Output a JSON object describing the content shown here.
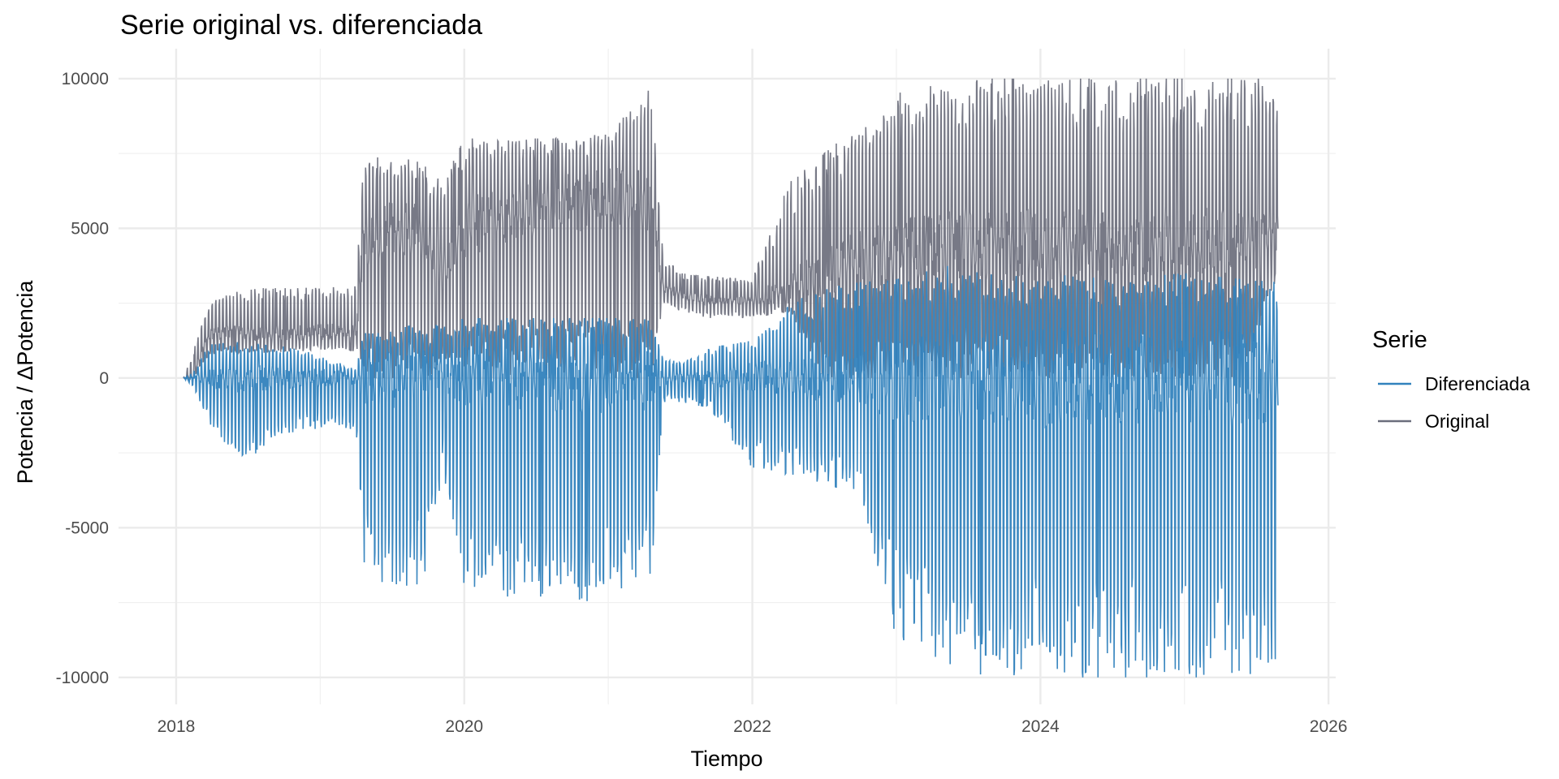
{
  "chart_data": {
    "type": "line",
    "title": "Serie original vs. diferenciada",
    "xlabel": "Tiempo",
    "ylabel": "Potencia / ΔPotencia",
    "xlim": [
      2017.6,
      2026.05
    ],
    "ylim": [
      -10900,
      11000
    ],
    "x_ticks": [
      2018,
      2020,
      2022,
      2024,
      2026
    ],
    "x_tick_labels": [
      "2018",
      "2020",
      "2022",
      "2024",
      "2026"
    ],
    "y_ticks": [
      -10000,
      -5000,
      0,
      5000,
      10000
    ],
    "y_tick_labels": [
      "-10000",
      "-5000",
      "0",
      "5000",
      "10000"
    ],
    "grid": true,
    "legend": {
      "title": "Serie",
      "position": "right",
      "entries": [
        {
          "name": "Diferenciada",
          "color": "#3182bd"
        },
        {
          "name": "Original",
          "color": "#6b6e7c"
        }
      ]
    },
    "series": [
      {
        "name": "Original",
        "color": "#6b6e7c",
        "points": [
          [
            2018.05,
            0,
            0,
            0
          ],
          [
            2018.12,
            0,
            900,
            0
          ],
          [
            2018.22,
            700,
            2500,
            1500
          ],
          [
            2018.45,
            800,
            3000,
            1500
          ],
          [
            2018.85,
            900,
            3000,
            1500
          ],
          [
            2019.25,
            900,
            3100,
            1600
          ],
          [
            2019.3,
            0,
            7500,
            4500
          ],
          [
            2019.45,
            0,
            7300,
            5000
          ],
          [
            2019.65,
            0,
            7300,
            5000
          ],
          [
            2019.75,
            0,
            7000,
            4500
          ],
          [
            2019.85,
            500,
            6500,
            3500
          ],
          [
            2020.0,
            0,
            8000,
            5000
          ],
          [
            2020.3,
            0,
            8000,
            5500
          ],
          [
            2020.7,
            0,
            8000,
            5800
          ],
          [
            2021.0,
            0,
            8200,
            6000
          ],
          [
            2021.3,
            0,
            9800,
            6000
          ],
          [
            2021.38,
            2500,
            4200,
            3000
          ],
          [
            2021.5,
            2200,
            3500,
            2800
          ],
          [
            2021.7,
            2000,
            3400,
            2600
          ],
          [
            2022.0,
            2000,
            3300,
            2600
          ],
          [
            2022.25,
            2200,
            6500,
            3000
          ],
          [
            2022.5,
            0,
            7500,
            3500
          ],
          [
            2022.75,
            0,
            8500,
            4000
          ],
          [
            2023.0,
            0,
            9500,
            4200
          ],
          [
            2023.4,
            0,
            10000,
            4500
          ],
          [
            2023.75,
            0,
            10000,
            4500
          ],
          [
            2024.0,
            0,
            10000,
            4500
          ],
          [
            2024.5,
            0,
            10000,
            4500
          ],
          [
            2025.0,
            0,
            10000,
            4500
          ],
          [
            2025.4,
            0,
            10000,
            4500
          ],
          [
            2025.65,
            3500,
            10000,
            5000
          ]
        ]
      },
      {
        "name": "Diferenciada",
        "color": "#3182bd",
        "points": [
          [
            2018.05,
            0,
            0,
            0
          ],
          [
            2018.12,
            -300,
            200,
            0
          ],
          [
            2018.22,
            -1500,
            1200,
            0
          ],
          [
            2018.45,
            -2800,
            1200,
            0
          ],
          [
            2018.85,
            -1700,
            1000,
            0
          ],
          [
            2019.25,
            -1700,
            300,
            0
          ],
          [
            2019.3,
            -6500,
            1500,
            0
          ],
          [
            2019.45,
            -7000,
            1500,
            0
          ],
          [
            2019.65,
            -7000,
            1800,
            0
          ],
          [
            2019.75,
            -6500,
            1500,
            0
          ],
          [
            2019.85,
            -3000,
            2000,
            0
          ],
          [
            2020.0,
            -7000,
            2000,
            0
          ],
          [
            2020.3,
            -7300,
            2000,
            0
          ],
          [
            2020.7,
            -7300,
            2000,
            0
          ],
          [
            2021.0,
            -7600,
            2000,
            0
          ],
          [
            2021.3,
            -6500,
            2000,
            0
          ],
          [
            2021.38,
            -800,
            700,
            0
          ],
          [
            2021.5,
            -800,
            500,
            0
          ],
          [
            2021.7,
            -1000,
            1000,
            0
          ],
          [
            2022.0,
            -3000,
            1300,
            0
          ],
          [
            2022.25,
            -3300,
            2500,
            0
          ],
          [
            2022.5,
            -3500,
            3000,
            0
          ],
          [
            2022.75,
            -4000,
            3200,
            0
          ],
          [
            2023.0,
            -8700,
            3300,
            0
          ],
          [
            2023.4,
            -9900,
            3800,
            0
          ],
          [
            2023.75,
            -9900,
            3500,
            0
          ],
          [
            2024.0,
            -10000,
            3500,
            0
          ],
          [
            2024.5,
            -10000,
            3300,
            0
          ],
          [
            2025.0,
            -10000,
            3500,
            0
          ],
          [
            2025.4,
            -10000,
            3300,
            0
          ],
          [
            2025.65,
            -9800,
            3200,
            0
          ]
        ]
      }
    ]
  }
}
